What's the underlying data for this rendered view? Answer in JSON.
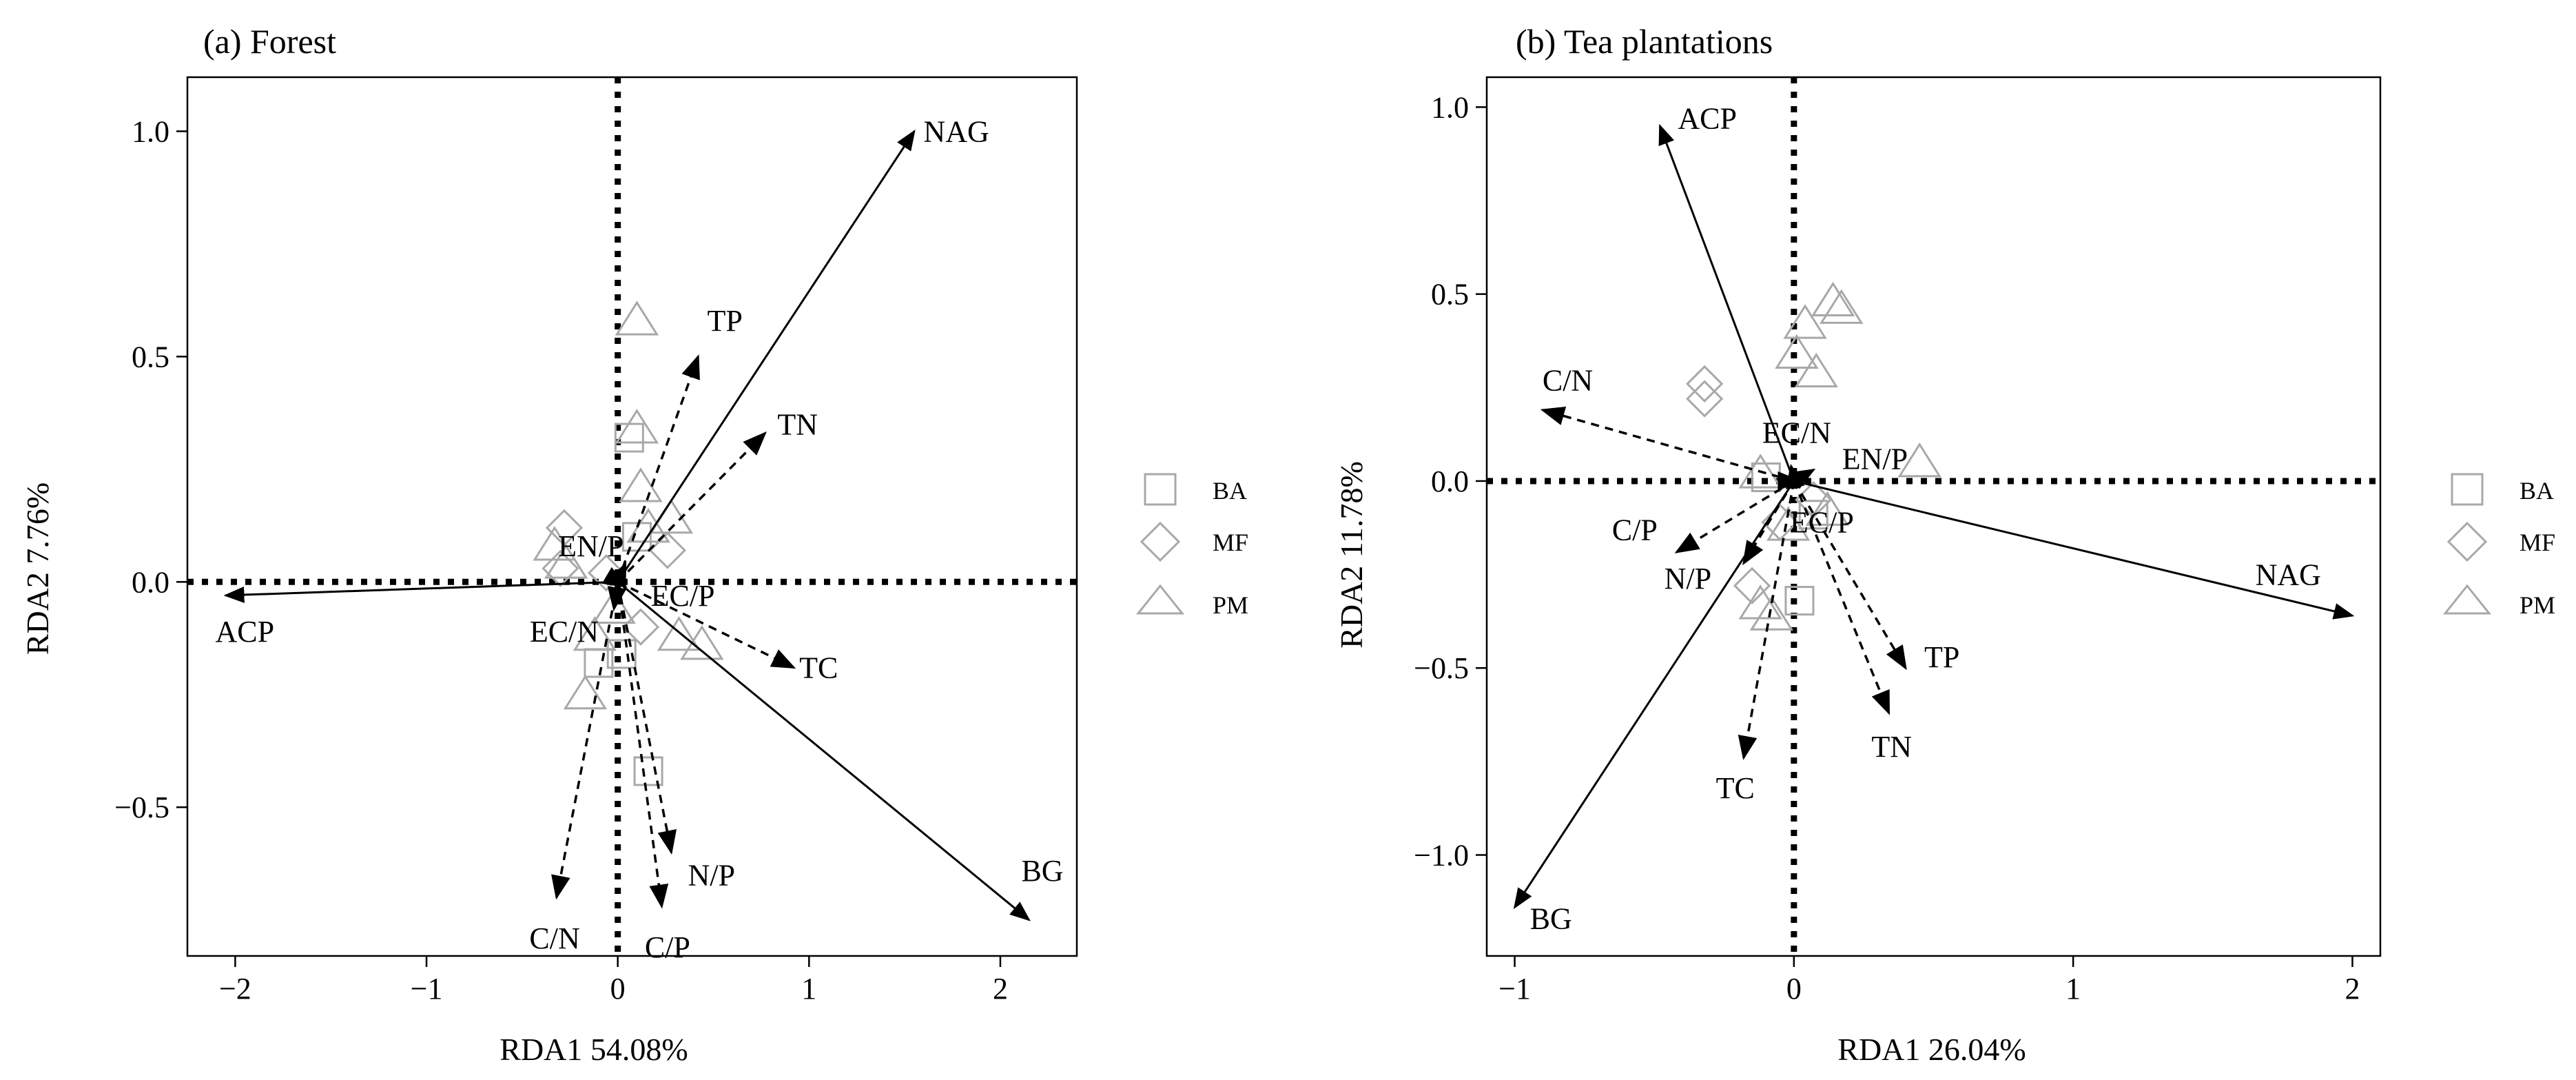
{
  "chart_data": [
    {
      "type": "scatter",
      "subtype": "rda-biplot",
      "title": "(a) Forest",
      "xlabel": "RDA1 54.08%",
      "ylabel": "RDA2 7.76%",
      "xlim": [
        -2.25,
        2.4
      ],
      "ylim": [
        -0.83,
        1.12
      ],
      "xticks": [
        -2,
        -1,
        0,
        1,
        2
      ],
      "yticks": [
        -0.5,
        0.0,
        0.5,
        1.0
      ],
      "xtick_labels": [
        "−2",
        "−1",
        "0",
        "1",
        "2"
      ],
      "ytick_labels": [
        "−0.5",
        "0.0",
        "0.5",
        "1.0"
      ],
      "reference_lines": {
        "x": 0,
        "y": 0,
        "style": "dotted"
      },
      "vectors": [
        {
          "name": "NAG",
          "x": 1.55,
          "y": 1.0,
          "style": "solid",
          "label_x": 1.77,
          "label_y": 1.0
        },
        {
          "name": "BG",
          "x": 2.15,
          "y": -0.75,
          "style": "solid",
          "label_x": 2.22,
          "label_y": -0.64
        },
        {
          "name": "ACP",
          "x": -2.05,
          "y": -0.03,
          "style": "solid",
          "label_x": -1.95,
          "label_y": -0.11
        },
        {
          "name": "TP",
          "x": 0.42,
          "y": 0.5,
          "style": "dashed",
          "label_x": 0.56,
          "label_y": 0.58
        },
        {
          "name": "TN",
          "x": 0.77,
          "y": 0.33,
          "style": "dashed",
          "label_x": 0.94,
          "label_y": 0.35
        },
        {
          "name": "TC",
          "x": 0.92,
          "y": -0.19,
          "style": "dashed",
          "label_x": 1.05,
          "label_y": -0.19
        },
        {
          "name": "C/N",
          "x": -0.32,
          "y": -0.7,
          "style": "dashed",
          "label_x": -0.33,
          "label_y": -0.79
        },
        {
          "name": "N/P",
          "x": 0.28,
          "y": -0.6,
          "style": "dashed",
          "label_x": 0.49,
          "label_y": -0.65
        },
        {
          "name": "C/P",
          "x": 0.23,
          "y": -0.72,
          "style": "dashed",
          "label_x": 0.26,
          "label_y": -0.81
        },
        {
          "name": "EN/P",
          "x": 0.04,
          "y": 0.04,
          "style": "dashed",
          "label_x": -0.14,
          "label_y": 0.08
        },
        {
          "name": "EC/P",
          "x": 0.04,
          "y": -0.01,
          "style": "dashed",
          "label_x": 0.34,
          "label_y": -0.03
        },
        {
          "name": "EC/N",
          "x": -0.02,
          "y": -0.06,
          "style": "dashed",
          "label_x": -0.28,
          "label_y": -0.11
        }
      ],
      "samples": [
        {
          "group": "BA",
          "x": 0.06,
          "y": 0.32
        },
        {
          "group": "BA",
          "x": 0.02,
          "y": -0.16
        },
        {
          "group": "BA",
          "x": -0.1,
          "y": -0.18
        },
        {
          "group": "BA",
          "x": 0.16,
          "y": -0.42
        },
        {
          "group": "BA",
          "x": 0.1,
          "y": 0.1
        },
        {
          "group": "MF",
          "x": -0.28,
          "y": 0.12
        },
        {
          "group": "MF",
          "x": 0.26,
          "y": 0.07
        },
        {
          "group": "MF",
          "x": -0.06,
          "y": 0.02
        },
        {
          "group": "MF",
          "x": 0.12,
          "y": -0.1
        },
        {
          "group": "MF",
          "x": -0.3,
          "y": 0.03
        },
        {
          "group": "PM",
          "x": 0.1,
          "y": 0.58
        },
        {
          "group": "PM",
          "x": 0.1,
          "y": 0.34
        },
        {
          "group": "PM",
          "x": 0.12,
          "y": 0.21
        },
        {
          "group": "PM",
          "x": 0.28,
          "y": 0.14
        },
        {
          "group": "PM",
          "x": 0.16,
          "y": 0.12
        },
        {
          "group": "PM",
          "x": -0.33,
          "y": 0.08
        },
        {
          "group": "PM",
          "x": -0.27,
          "y": 0.04
        },
        {
          "group": "PM",
          "x": 0.32,
          "y": -0.12
        },
        {
          "group": "PM",
          "x": 0.44,
          "y": -0.14
        },
        {
          "group": "PM",
          "x": -0.12,
          "y": -0.12
        },
        {
          "group": "PM",
          "x": -0.17,
          "y": -0.25
        },
        {
          "group": "PM",
          "x": -0.02,
          "y": -0.06
        }
      ]
    },
    {
      "type": "scatter",
      "subtype": "rda-biplot",
      "title": "(b) Tea plantations",
      "xlabel": "RDA1 26.04%",
      "ylabel": "RDA2 11.78%",
      "xlim": [
        -1.1,
        2.1
      ],
      "ylim": [
        -1.27,
        1.08
      ],
      "xticks": [
        -1,
        0,
        1,
        2
      ],
      "yticks": [
        -1.0,
        -0.5,
        0.0,
        0.5,
        1.0
      ],
      "xtick_labels": [
        "−1",
        "0",
        "1",
        "2"
      ],
      "ytick_labels": [
        "−1.0",
        "−0.5",
        "0.0",
        "0.5",
        "1.0"
      ],
      "reference_lines": {
        "x": 0,
        "y": 0,
        "style": "dotted"
      },
      "vectors": [
        {
          "name": "ACP",
          "x": -0.48,
          "y": 0.95,
          "style": "solid",
          "label_x": -0.31,
          "label_y": 0.97
        },
        {
          "name": "NAG",
          "x": 2.0,
          "y": -0.36,
          "style": "solid",
          "label_x": 1.77,
          "label_y": -0.25
        },
        {
          "name": "BG",
          "x": -1.0,
          "y": -1.14,
          "style": "solid",
          "label_x": -0.87,
          "label_y": -1.17
        },
        {
          "name": "C/N",
          "x": -0.9,
          "y": 0.19,
          "style": "dashed",
          "label_x": -0.81,
          "label_y": 0.27
        },
        {
          "name": "TP",
          "x": 0.4,
          "y": -0.5,
          "style": "dashed",
          "label_x": 0.53,
          "label_y": -0.47
        },
        {
          "name": "TN",
          "x": 0.34,
          "y": -0.62,
          "style": "dashed",
          "label_x": 0.35,
          "label_y": -0.71
        },
        {
          "name": "TC",
          "x": -0.18,
          "y": -0.74,
          "style": "dashed",
          "label_x": -0.21,
          "label_y": -0.82
        },
        {
          "name": "C/P",
          "x": -0.42,
          "y": -0.19,
          "style": "dashed",
          "label_x": -0.57,
          "label_y": -0.13
        },
        {
          "name": "N/P",
          "x": -0.18,
          "y": -0.22,
          "style": "dashed",
          "label_x": -0.38,
          "label_y": -0.26
        },
        {
          "name": "EC/N",
          "x": -0.01,
          "y": 0.04,
          "style": "dashed",
          "label_x": 0.01,
          "label_y": 0.13
        },
        {
          "name": "EN/P",
          "x": 0.07,
          "y": 0.03,
          "style": "dashed",
          "label_x": 0.29,
          "label_y": 0.06
        },
        {
          "name": "EC/P",
          "x": 0.02,
          "y": 0.0,
          "style": "dashed",
          "label_x": 0.1,
          "label_y": -0.11
        }
      ],
      "samples": [
        {
          "group": "BA",
          "x": 0.02,
          "y": -0.32
        },
        {
          "group": "BA",
          "x": 0.07,
          "y": -0.09
        },
        {
          "group": "BA",
          "x": -0.1,
          "y": 0.01
        },
        {
          "group": "MF",
          "x": -0.32,
          "y": 0.26
        },
        {
          "group": "MF",
          "x": -0.32,
          "y": 0.22
        },
        {
          "group": "MF",
          "x": 0.07,
          "y": -0.05
        },
        {
          "group": "MF",
          "x": -0.15,
          "y": -0.28
        },
        {
          "group": "MF",
          "x": -0.05,
          "y": -0.11
        },
        {
          "group": "PM",
          "x": 0.14,
          "y": 0.48
        },
        {
          "group": "PM",
          "x": 0.17,
          "y": 0.46
        },
        {
          "group": "PM",
          "x": 0.04,
          "y": 0.42
        },
        {
          "group": "PM",
          "x": 0.01,
          "y": 0.34
        },
        {
          "group": "PM",
          "x": 0.08,
          "y": 0.29
        },
        {
          "group": "PM",
          "x": 0.45,
          "y": 0.05
        },
        {
          "group": "PM",
          "x": -0.12,
          "y": 0.02
        },
        {
          "group": "PM",
          "x": 0.12,
          "y": -0.08
        },
        {
          "group": "PM",
          "x": -0.02,
          "y": -0.12
        },
        {
          "group": "PM",
          "x": -0.12,
          "y": -0.33
        },
        {
          "group": "PM",
          "x": -0.08,
          "y": -0.36
        }
      ]
    }
  ],
  "legend": {
    "items": [
      {
        "label": "BA",
        "symbol": "square"
      },
      {
        "label": "MF",
        "symbol": "diamond"
      },
      {
        "label": "PM",
        "symbol": "triangle"
      }
    ]
  },
  "colors": {
    "marker": "#a8a8a8",
    "ink": "#000000",
    "background": "#ffffff"
  }
}
